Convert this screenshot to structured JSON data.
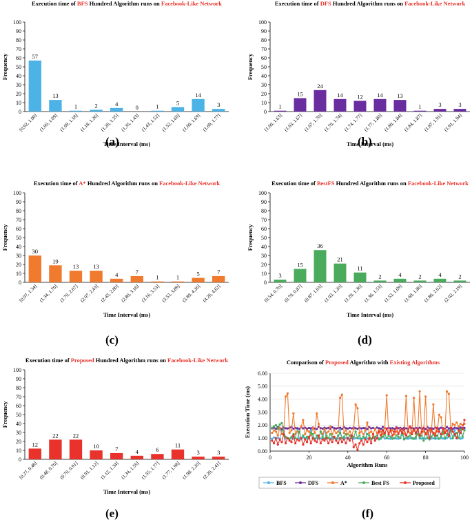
{
  "chart_data": [
    {
      "id": "a",
      "type": "bar",
      "title": [
        "Execution time of ",
        "BFS",
        " Hundred Algorithm runs on ",
        "Facebook-Like Network"
      ],
      "categories": [
        "[0.92, 1.00]",
        "(1.00, 1.09]",
        "(1.09, 1.18]",
        "(1.18, 1.26]",
        "(1.26, 1.35]",
        "(1.35, 1.43]",
        "(1.43, 1.52]",
        "(1.52, 1.60]",
        "(1.60, 1.69]",
        "(1.69, 1.77]"
      ],
      "values": [
        57,
        13,
        1,
        2,
        4,
        0,
        1,
        5,
        14,
        3
      ],
      "color": "#4db3e6",
      "xlabel": "Time Interval (ms)",
      "ylabel": "Frequency",
      "ylim": [
        0,
        100
      ],
      "yticks": [
        0,
        10,
        20,
        30,
        40,
        50,
        60,
        70,
        80,
        90,
        100
      ],
      "panel_label": "(a)"
    },
    {
      "id": "b",
      "type": "bar",
      "title": [
        "Execution time of ",
        "DFS",
        " Hundred Algorithm runs on ",
        "Facebook-Like Network"
      ],
      "categories": [
        "[1.60, 1.63]",
        "(1.63, 1.67]",
        "(1.67, 1.70]",
        "(1.70, 1.74]",
        "(1.74, 1.77]",
        "(1.77, 1.80]",
        "(1.80, 1.84]",
        "(1.84, 1.87]",
        "(1.87, 1.91]",
        "(1.91, 1.94]"
      ],
      "values": [
        1,
        15,
        24,
        14,
        12,
        14,
        13,
        1,
        3,
        3
      ],
      "color": "#6a2d9f",
      "xlabel": "Time Interval (ms)",
      "ylabel": "Frequency",
      "ylim": [
        0,
        100
      ],
      "yticks": [
        0,
        10,
        20,
        30,
        40,
        50,
        60,
        70,
        80,
        90,
        100
      ],
      "panel_label": "(b)"
    },
    {
      "id": "c",
      "type": "bar",
      "title": [
        "Execution time of ",
        "A*",
        " Hundred Algorithm runs on ",
        "Facebook-Like Network"
      ],
      "categories": [
        "[0.97, 1.34]",
        "(1.34, 1.70]",
        "(1.70, 2.07]",
        "(2.07, 2.43]",
        "(2.43, 2.80]",
        "(2.80, 3.16]",
        "(3.16, 3.53]",
        "(3.53, 3.89]",
        "(3.89, 4.26]",
        "(4.26, 4.62]"
      ],
      "values": [
        30,
        19,
        13,
        13,
        4,
        7,
        1,
        1,
        5,
        7
      ],
      "color": "#f07a2e",
      "xlabel": "Time Interval (ms)",
      "ylabel": "Frequency",
      "ylim": [
        0,
        100
      ],
      "yticks": [
        0,
        10,
        20,
        30,
        40,
        50,
        60,
        70,
        80,
        90,
        100
      ],
      "panel_label": "(c)"
    },
    {
      "id": "d",
      "type": "bar",
      "title": [
        "Execution time of ",
        "BestFS",
        " Hundred Algorithm runs on ",
        "Facebook-Like Network"
      ],
      "categories": [
        "[0.54, 0.70]",
        "(0.70, 0.87]",
        "(0.87, 1.03]",
        "(1.03, 1.20]",
        "(1.20, 1.36]",
        "(1.36, 1.53]",
        "(1.53, 1.69]",
        "(1.69, 1.86]",
        "(1.86, 2.02]",
        "(2.02, 2.19]"
      ],
      "values": [
        3,
        15,
        36,
        21,
        11,
        2,
        4,
        2,
        4,
        2
      ],
      "color": "#4aab5c",
      "xlabel": "Time Interval (ms)",
      "ylabel": "Frequency",
      "ylim": [
        0,
        100
      ],
      "yticks": [
        0,
        10,
        20,
        30,
        40,
        50,
        60,
        70,
        80,
        90,
        100
      ],
      "panel_label": "(d)"
    },
    {
      "id": "e",
      "type": "bar",
      "title": [
        "Execution time of ",
        "Proposed",
        " Hundred Algorithm runs on ",
        "Facebook-Like Network"
      ],
      "categories": [
        "[0.27, 0.48]",
        "(0.48, 0.70]",
        "(0.70, 0.91]",
        "(0.91, 1.12]",
        "(1.12, 1.34]",
        "(1.34, 1.55]",
        "(1.55, 1.77]",
        "(1.77, 1.98]",
        "(1.98, 2.20]",
        "(2.20, 2.41]"
      ],
      "values": [
        12,
        22,
        22,
        10,
        7,
        4,
        6,
        11,
        3,
        3
      ],
      "color": "#e8322b",
      "xlabel": "Time Interval (ms)",
      "ylabel": "Frequency",
      "ylim": [
        0,
        100
      ],
      "yticks": [
        0,
        10,
        20,
        30,
        40,
        50,
        60,
        70,
        80,
        90,
        100
      ],
      "panel_label": "(e)"
    },
    {
      "id": "f",
      "type": "line",
      "title": [
        "Comparison of ",
        "Proposed",
        " Algorithm with ",
        "Existing Algorithms"
      ],
      "xlabel": "Algorithm Runs",
      "ylabel": "Execution Time (ms)",
      "xlim": [
        0,
        100
      ],
      "ylim": [
        0,
        6
      ],
      "xticks": [
        0,
        20,
        40,
        60,
        80,
        100
      ],
      "yticks": [
        "0.00",
        "1.00",
        "2.00",
        "3.00",
        "4.00",
        "5.00",
        "6.00"
      ],
      "legend_position": "bottom",
      "panel_label": "(f)",
      "series": [
        {
          "name": "BFS",
          "color": "#4db3e6",
          "values": [
            0.95,
            1.05,
            0.98,
            1.0,
            0.96,
            1.6,
            1.65,
            0.97,
            0.99,
            0.95,
            1.02,
            0.96,
            1.0,
            1.7,
            0.97,
            0.95,
            1.05,
            1.0,
            0.96,
            0.98,
            1.62,
            0.97,
            0.95,
            1.0,
            0.97,
            0.98,
            0.95,
            1.68,
            0.96,
            0.99,
            0.97,
            0.95,
            1.02,
            0.98,
            0.96,
            1.65,
            0.97,
            0.95,
            1.0,
            0.98,
            0.96,
            1.02,
            0.95,
            1.0,
            0.98,
            0.97,
            0.95,
            0.99,
            1.7,
            0.96,
            0.98,
            0.95,
            1.0,
            0.97,
            0.96,
            0.98,
            0.95,
            1.66,
            0.97,
            0.99,
            0.96,
            0.95,
            1.0,
            0.98,
            0.97,
            0.95,
            0.99,
            1.72,
            0.96,
            0.98,
            0.95,
            1.0,
            0.97,
            0.98,
            0.95,
            1.6,
            0.97,
            0.96,
            0.99,
            0.95,
            1.0,
            1.68,
            0.97,
            0.98,
            0.95,
            0.96,
            1.65,
            0.99,
            0.97,
            0.95,
            1.0,
            1.7,
            0.96,
            0.98,
            1.62,
            0.97,
            1.6,
            0.95,
            1.0,
            1.66
          ]
        },
        {
          "name": "DFS",
          "color": "#6a2d9f",
          "values": [
            1.75,
            1.8,
            1.72,
            1.85,
            1.78,
            1.7,
            1.82,
            1.76,
            1.74,
            1.8,
            1.86,
            1.73,
            1.79,
            1.77,
            1.71,
            1.84,
            1.75,
            1.8,
            1.72,
            1.78,
            1.76,
            1.82,
            1.74,
            1.7,
            1.88,
            1.77,
            1.73,
            1.8,
            1.75,
            1.79,
            1.72,
            1.83,
            1.76,
            1.74,
            1.78,
            1.8,
            1.71,
            1.85,
            1.77,
            1.73,
            1.79,
            1.75,
            1.82,
            1.76,
            1.72,
            1.8,
            1.74,
            1.78,
            1.77,
            1.7,
            1.84,
            1.75,
            1.79,
            1.73,
            1.81,
            1.76,
            1.72,
            1.86,
            1.78,
            1.74,
            1.8,
            1.75,
            1.77,
            1.71,
            1.83,
            1.76,
            1.79,
            1.73,
            1.8,
            1.75,
            1.72,
            1.85,
            1.78,
            1.74,
            1.79,
            1.76,
            1.8,
            1.73,
            1.77,
            1.71,
            1.84,
            1.75,
            1.79,
            1.72,
            1.81,
            1.76,
            1.74,
            1.8,
            1.77,
            1.73,
            1.85,
            1.75,
            1.78,
            1.72,
            1.8,
            1.76,
            1.74,
            1.82,
            1.77,
            1.79
          ]
        },
        {
          "name": "A*",
          "color": "#f07a2e",
          "values": [
            1.4,
            1.6,
            1.5,
            1.2,
            1.8,
            1.3,
            1.5,
            4.2,
            4.45,
            1.4,
            1.6,
            2.9,
            1.3,
            1.5,
            1.4,
            1.9,
            2.4,
            1.3,
            1.6,
            1.5,
            1.2,
            1.8,
            1.4,
            2.9,
            2.1,
            1.5,
            1.3,
            1.7,
            1.4,
            1.5,
            1.9,
            1.3,
            1.6,
            1.4,
            1.5,
            4.1,
            4.35,
            1.4,
            1.6,
            1.3,
            1.5,
            1.2,
            1.7,
            3.6,
            3.3,
            1.4,
            1.5,
            1.3,
            1.6,
            2.2,
            1.4,
            1.5,
            1.3,
            1.7,
            1.4,
            1.6,
            1.5,
            1.3,
            1.8,
            4.3,
            1.4,
            1.5,
            1.6,
            1.3,
            1.5,
            1.4,
            1.7,
            1.5,
            1.3,
            4.25,
            1.6,
            1.4,
            1.5,
            4.1,
            1.3,
            1.6,
            4.6,
            1.4,
            1.5,
            4.2,
            1.3,
            1.6,
            1.5,
            3.6,
            1.4,
            1.5,
            2.8,
            2.6,
            1.3,
            1.5,
            4.6,
            4.4,
            1.6,
            2.1,
            2.0,
            2.2,
            1.9,
            2.1,
            2.0,
            2.1
          ]
        },
        {
          "name": "Best FS",
          "color": "#4aab5c",
          "values": [
            1.8,
            1.9,
            2.0,
            1.7,
            2.05,
            2.15,
            1.3,
            1.1,
            1.0,
            0.95,
            1.1,
            1.3,
            1.0,
            0.9,
            1.5,
            1.0,
            1.2,
            0.95,
            1.1,
            1.0,
            1.4,
            1.3,
            0.9,
            1.2,
            1.0,
            1.5,
            1.1,
            0.95,
            1.2,
            1.0,
            1.3,
            1.1,
            1.0,
            0.9,
            1.2,
            1.4,
            1.0,
            1.1,
            1.3,
            0.95,
            1.2,
            1.0,
            1.1,
            1.5,
            1.0,
            1.2,
            0.9,
            1.1,
            1.0,
            1.3,
            1.2,
            0.95,
            1.0,
            1.1,
            1.2,
            0.9,
            1.0,
            1.1,
            1.3,
            1.0,
            1.2,
            1.1,
            0.95,
            1.0,
            1.2,
            1.1,
            1.0,
            1.3,
            0.9,
            1.0,
            1.1,
            1.2,
            1.0,
            0.95,
            1.1,
            1.3,
            1.0,
            1.2,
            0.8,
            1.4,
            1.0,
            0.9,
            1.1,
            1.3,
            1.0,
            1.2,
            0.95,
            1.1,
            1.5,
            1.0,
            1.3,
            1.1,
            1.6,
            1.0,
            1.2,
            1.4,
            1.0,
            1.7,
            1.1,
            1.6
          ]
        },
        {
          "name": "Proposed",
          "color": "#e8322b",
          "values": [
            0.8,
            0.6,
            1.0,
            0.5,
            0.9,
            0.7,
            1.3,
            0.6,
            1.0,
            0.8,
            0.7,
            1.2,
            0.6,
            0.9,
            0.8,
            1.0,
            0.5,
            0.9,
            0.7,
            1.1,
            0.6,
            1.0,
            0.8,
            0.7,
            1.2,
            0.6,
            0.9,
            0.8,
            1.0,
            0.6,
            0.9,
            0.7,
            1.1,
            0.8,
            0.6,
            1.0,
            0.7,
            0.9,
            0.6,
            1.0,
            0.8,
            1.2,
            0.3,
            0.5,
            0.1,
            0.6,
            0.8,
            0.5,
            0.9,
            0.7,
            1.0,
            0.6,
            1.3,
            0.8,
            1.0,
            1.5,
            1.2,
            1.6,
            1.4,
            1.7,
            1.3,
            1.6,
            1.2,
            1.5,
            1.8,
            1.3,
            1.6,
            1.4,
            1.7,
            1.2,
            1.5,
            1.9,
            1.3,
            1.6,
            1.4,
            1.7,
            1.2,
            1.5,
            1.8,
            1.3,
            1.6,
            1.0,
            1.7,
            1.4,
            1.2,
            1.8,
            1.5,
            1.3,
            1.7,
            1.4,
            1.6,
            1.2,
            1.8,
            1.5,
            1.3,
            1.0,
            1.6,
            1.4,
            1.7,
            2.4
          ]
        }
      ]
    }
  ]
}
